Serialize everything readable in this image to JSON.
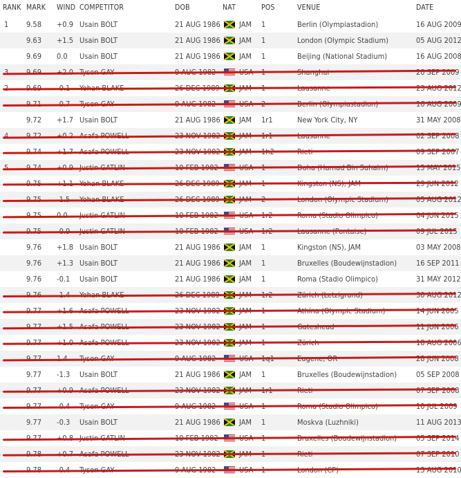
{
  "headers": {
    "rank": "RANK",
    "mark": "MARK",
    "wind": "WIND",
    "competitor": "COMPETITOR",
    "dob": "DOB",
    "nat": "NAT",
    "pos": "POS",
    "venue": "VENUE",
    "date": "DATE"
  },
  "rows": [
    {
      "rank": "1",
      "mark": "9.58",
      "wind": "+0.9",
      "competitor": "Usain BOLT",
      "dob": "21 AUG 1986",
      "nat": "JAM",
      "pos": "1",
      "venue": "Berlin (Olympiastadion)",
      "date": "16 AUG 2009",
      "struck": false
    },
    {
      "rank": "",
      "mark": "9.63",
      "wind": "+1.5",
      "competitor": "Usain BOLT",
      "dob": "21 AUG 1986",
      "nat": "JAM",
      "pos": "1",
      "venue": "London (Olympic Stadium)",
      "date": "05 AUG 2012",
      "struck": false
    },
    {
      "rank": "",
      "mark": "9.69",
      "wind": "0.0",
      "competitor": "Usain BOLT",
      "dob": "21 AUG 1986",
      "nat": "JAM",
      "pos": "1",
      "venue": "Beijing (National Stadium)",
      "date": "16 AUG 2008",
      "struck": false
    },
    {
      "rank": "3",
      "mark": "9.69",
      "wind": "+2.0",
      "competitor": "Tyson GAY",
      "dob": "9 AUG 1982",
      "nat": "USA",
      "pos": "1",
      "venue": "Shanghai",
      "date": "20 SEP 2009",
      "struck": true
    },
    {
      "rank": "2",
      "mark": "9.69",
      "wind": "-0.1",
      "competitor": "Yohan BLAKE",
      "dob": "26 DEC 1989",
      "nat": "JAM",
      "pos": "1",
      "venue": "Lausanne",
      "date": "23 AUG 2012",
      "struck": true
    },
    {
      "rank": "",
      "mark": "9.71",
      "wind": "-0.7",
      "competitor": "Tyson GAY",
      "dob": "9 AUG 1982",
      "nat": "USA",
      "pos": "2",
      "venue": "Berlin (Olympiastadion)",
      "date": "16 AUG 2009",
      "struck": true
    },
    {
      "rank": "",
      "mark": "9.72",
      "wind": "+1.7",
      "competitor": "Usain BOLT",
      "dob": "21 AUG 1986",
      "nat": "JAM",
      "pos": "1r1",
      "venue": "New York City, NY",
      "date": "31 MAY 2008",
      "struck": false
    },
    {
      "rank": "4",
      "mark": "9.72",
      "wind": "+0.2",
      "competitor": "Asafa POWELL",
      "dob": "23 NOV 1982",
      "nat": "JAM",
      "pos": "1r1",
      "venue": "Lausanne",
      "date": "02 SEP 2008",
      "struck": true
    },
    {
      "rank": "",
      "mark": "9.74",
      "wind": "+1.7",
      "competitor": "Asafa POWELL",
      "dob": "23 NOV 1982",
      "nat": "JAM",
      "pos": "1h2",
      "venue": "Rieti",
      "date": "09 SEP 2007",
      "struck": true
    },
    {
      "rank": "5",
      "mark": "9.74",
      "wind": "+0.9",
      "competitor": "Justin GATLIN",
      "dob": "10 FEB 1982",
      "nat": "USA",
      "pos": "1",
      "venue": "Doha (Hamad Bin Suhaim)",
      "date": "15 MAY 2015",
      "struck": true
    },
    {
      "rank": "",
      "mark": "9.75",
      "wind": "+1.1",
      "competitor": "Yohan BLAKE",
      "dob": "26 DEC 1989",
      "nat": "JAM",
      "pos": "1",
      "venue": "Kingston (NS), JAM",
      "date": "29 JUN 2012",
      "struck": true
    },
    {
      "rank": "",
      "mark": "9.75",
      "wind": "-1.5",
      "competitor": "Yohan BLAKE",
      "dob": "26 DEC 1989",
      "nat": "JAM",
      "pos": "2",
      "venue": "London (Olympic Stadium)",
      "date": "05 AUG 2012",
      "struck": true
    },
    {
      "rank": "",
      "mark": "9.75",
      "wind": "0.0",
      "competitor": "Justin GATLIN",
      "dob": "10 FEB 1982",
      "nat": "USA",
      "pos": "1r2",
      "venue": "Roma (Stadio Olimpico)",
      "date": "04 JUN 2015",
      "struck": true
    },
    {
      "rank": "",
      "mark": "9.75",
      "wind": "-0.9",
      "competitor": "Justin GATLIN",
      "dob": "10 FEB 1982",
      "nat": "USA",
      "pos": "1r2",
      "venue": "Lausanne (Pontaise)",
      "date": "09 JUL 2015",
      "struck": true
    },
    {
      "rank": "",
      "mark": "9.76",
      "wind": "+1.8",
      "competitor": "Usain BOLT",
      "dob": "21 AUG 1986",
      "nat": "JAM",
      "pos": "1",
      "venue": "Kingston (NS), JAM",
      "date": "03 MAY 2008",
      "struck": false
    },
    {
      "rank": "",
      "mark": "9.76",
      "wind": "+1.3",
      "competitor": "Usain BOLT",
      "dob": "21 AUG 1986",
      "nat": "JAM",
      "pos": "1",
      "venue": "Bruxelles (Boudewijnstadion)",
      "date": "16 SEP 2011",
      "struck": false
    },
    {
      "rank": "",
      "mark": "9.76",
      "wind": "-0.1",
      "competitor": "Usain BOLT",
      "dob": "21 AUG 1986",
      "nat": "JAM",
      "pos": "1",
      "venue": "Roma (Stadio Olimpico)",
      "date": "31 MAY 2012",
      "struck": false
    },
    {
      "rank": "",
      "mark": "9.76",
      "wind": "-1.4",
      "competitor": "Yohan BLAKE",
      "dob": "26 DEC 1989",
      "nat": "JAM",
      "pos": "1r2",
      "venue": "Zürich (Letzigrund)",
      "date": "30 AUG 2012",
      "struck": true
    },
    {
      "rank": "",
      "mark": "9.77",
      "wind": "+1.6",
      "competitor": "Asafa POWELL",
      "dob": "23 NOV 1982",
      "nat": "JAM",
      "pos": "1",
      "venue": "Athína (Olympic Stadium)",
      "date": "14 JUN 2005",
      "struck": true
    },
    {
      "rank": "",
      "mark": "9.77",
      "wind": "+1.5",
      "competitor": "Asafa POWELL",
      "dob": "23 NOV 1982",
      "nat": "JAM",
      "pos": "1",
      "venue": "Gateshead",
      "date": "11 JUN 2006",
      "struck": true
    },
    {
      "rank": "",
      "mark": "9.77",
      "wind": "+1.0",
      "competitor": "Asafa POWELL",
      "dob": "23 NOV 1982",
      "nat": "JAM",
      "pos": "1",
      "venue": "Zürich",
      "date": "18 AUG 2006",
      "struck": true
    },
    {
      "rank": "",
      "mark": "9.77",
      "wind": "1.4",
      "competitor": "Tyson GAY",
      "dob": "9 AUG 1982",
      "nat": "USA",
      "pos": "1q1",
      "venue": "Eugene, OR",
      "date": "28 JUN 2008",
      "struck": true
    },
    {
      "rank": "",
      "mark": "9.77",
      "wind": "-1.3",
      "competitor": "Usain BOLT",
      "dob": "21 AUG 1986",
      "nat": "JAM",
      "pos": "1",
      "venue": "Bruxelles (Boudewijnstadion)",
      "date": "05 SEP 2008",
      "struck": false
    },
    {
      "rank": "",
      "mark": "9.77",
      "wind": "+0.9",
      "competitor": "Asafa POWELL",
      "dob": "23 NOV 1982",
      "nat": "JAM",
      "pos": "1r1",
      "venue": "Rieti",
      "date": "07 SEP 2008",
      "struck": true
    },
    {
      "rank": "",
      "mark": "9.77",
      "wind": "-0.4",
      "competitor": "Tyson GAY",
      "dob": "9 AUG 1982",
      "nat": "USA",
      "pos": "1",
      "venue": "Roma (Stadio Olimpico)",
      "date": "10 JUL 2009",
      "struck": true
    },
    {
      "rank": "",
      "mark": "9.77",
      "wind": "-0.3",
      "competitor": "Usain BOLT",
      "dob": "21 AUG 1986",
      "nat": "JAM",
      "pos": "1",
      "venue": "Moskva (Luzhniki)",
      "date": "11 AUG 2013",
      "struck": false
    },
    {
      "rank": "",
      "mark": "9.77",
      "wind": "+0.8",
      "competitor": "Justin GATLIN",
      "dob": "10 FEB 1982",
      "nat": "USA",
      "pos": "1",
      "venue": "Bruxelles (Boudewijnstadion)",
      "date": "05 SEP 2014",
      "struck": true
    },
    {
      "rank": "",
      "mark": "9.78",
      "wind": "+0.7",
      "competitor": "Asafa POWELL",
      "dob": "23 NOV 1982",
      "nat": "JAM",
      "pos": "1",
      "venue": "Rieti",
      "date": "07 SEP 2010",
      "struck": true
    },
    {
      "rank": "",
      "mark": "9.78",
      "wind": "-0.4",
      "competitor": "Tyson GAY",
      "dob": "9 AUG 1982",
      "nat": "USA",
      "pos": "1",
      "venue": "London (CP)",
      "date": "13 AUG 2010",
      "struck": true
    }
  ],
  "colors": {
    "strike": "#c81a1a",
    "row_alt": "#f2f2f2",
    "text": "#444444"
  }
}
